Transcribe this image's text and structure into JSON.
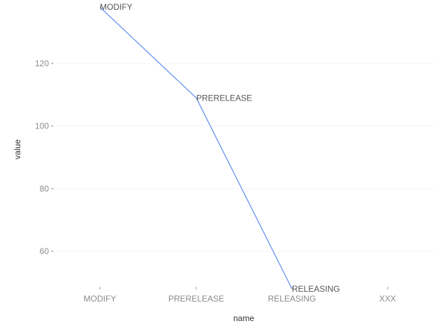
{
  "chart_data": {
    "type": "line",
    "title": "",
    "xlabel": "name",
    "ylabel": "value",
    "categories": [
      "MODIFY",
      "PRERELEASE",
      "RELEASING",
      "XXX"
    ],
    "series": [
      {
        "values": [
          138,
          109,
          48,
          null
        ],
        "point_labels": [
          "MODIFY",
          "PRERELEASE",
          "RELEASING",
          null
        ]
      }
    ],
    "ylim": [
      47.5,
      138.5
    ],
    "yticks": [
      60,
      80,
      100,
      120
    ],
    "grid": true,
    "line_color": "#5b8def"
  }
}
